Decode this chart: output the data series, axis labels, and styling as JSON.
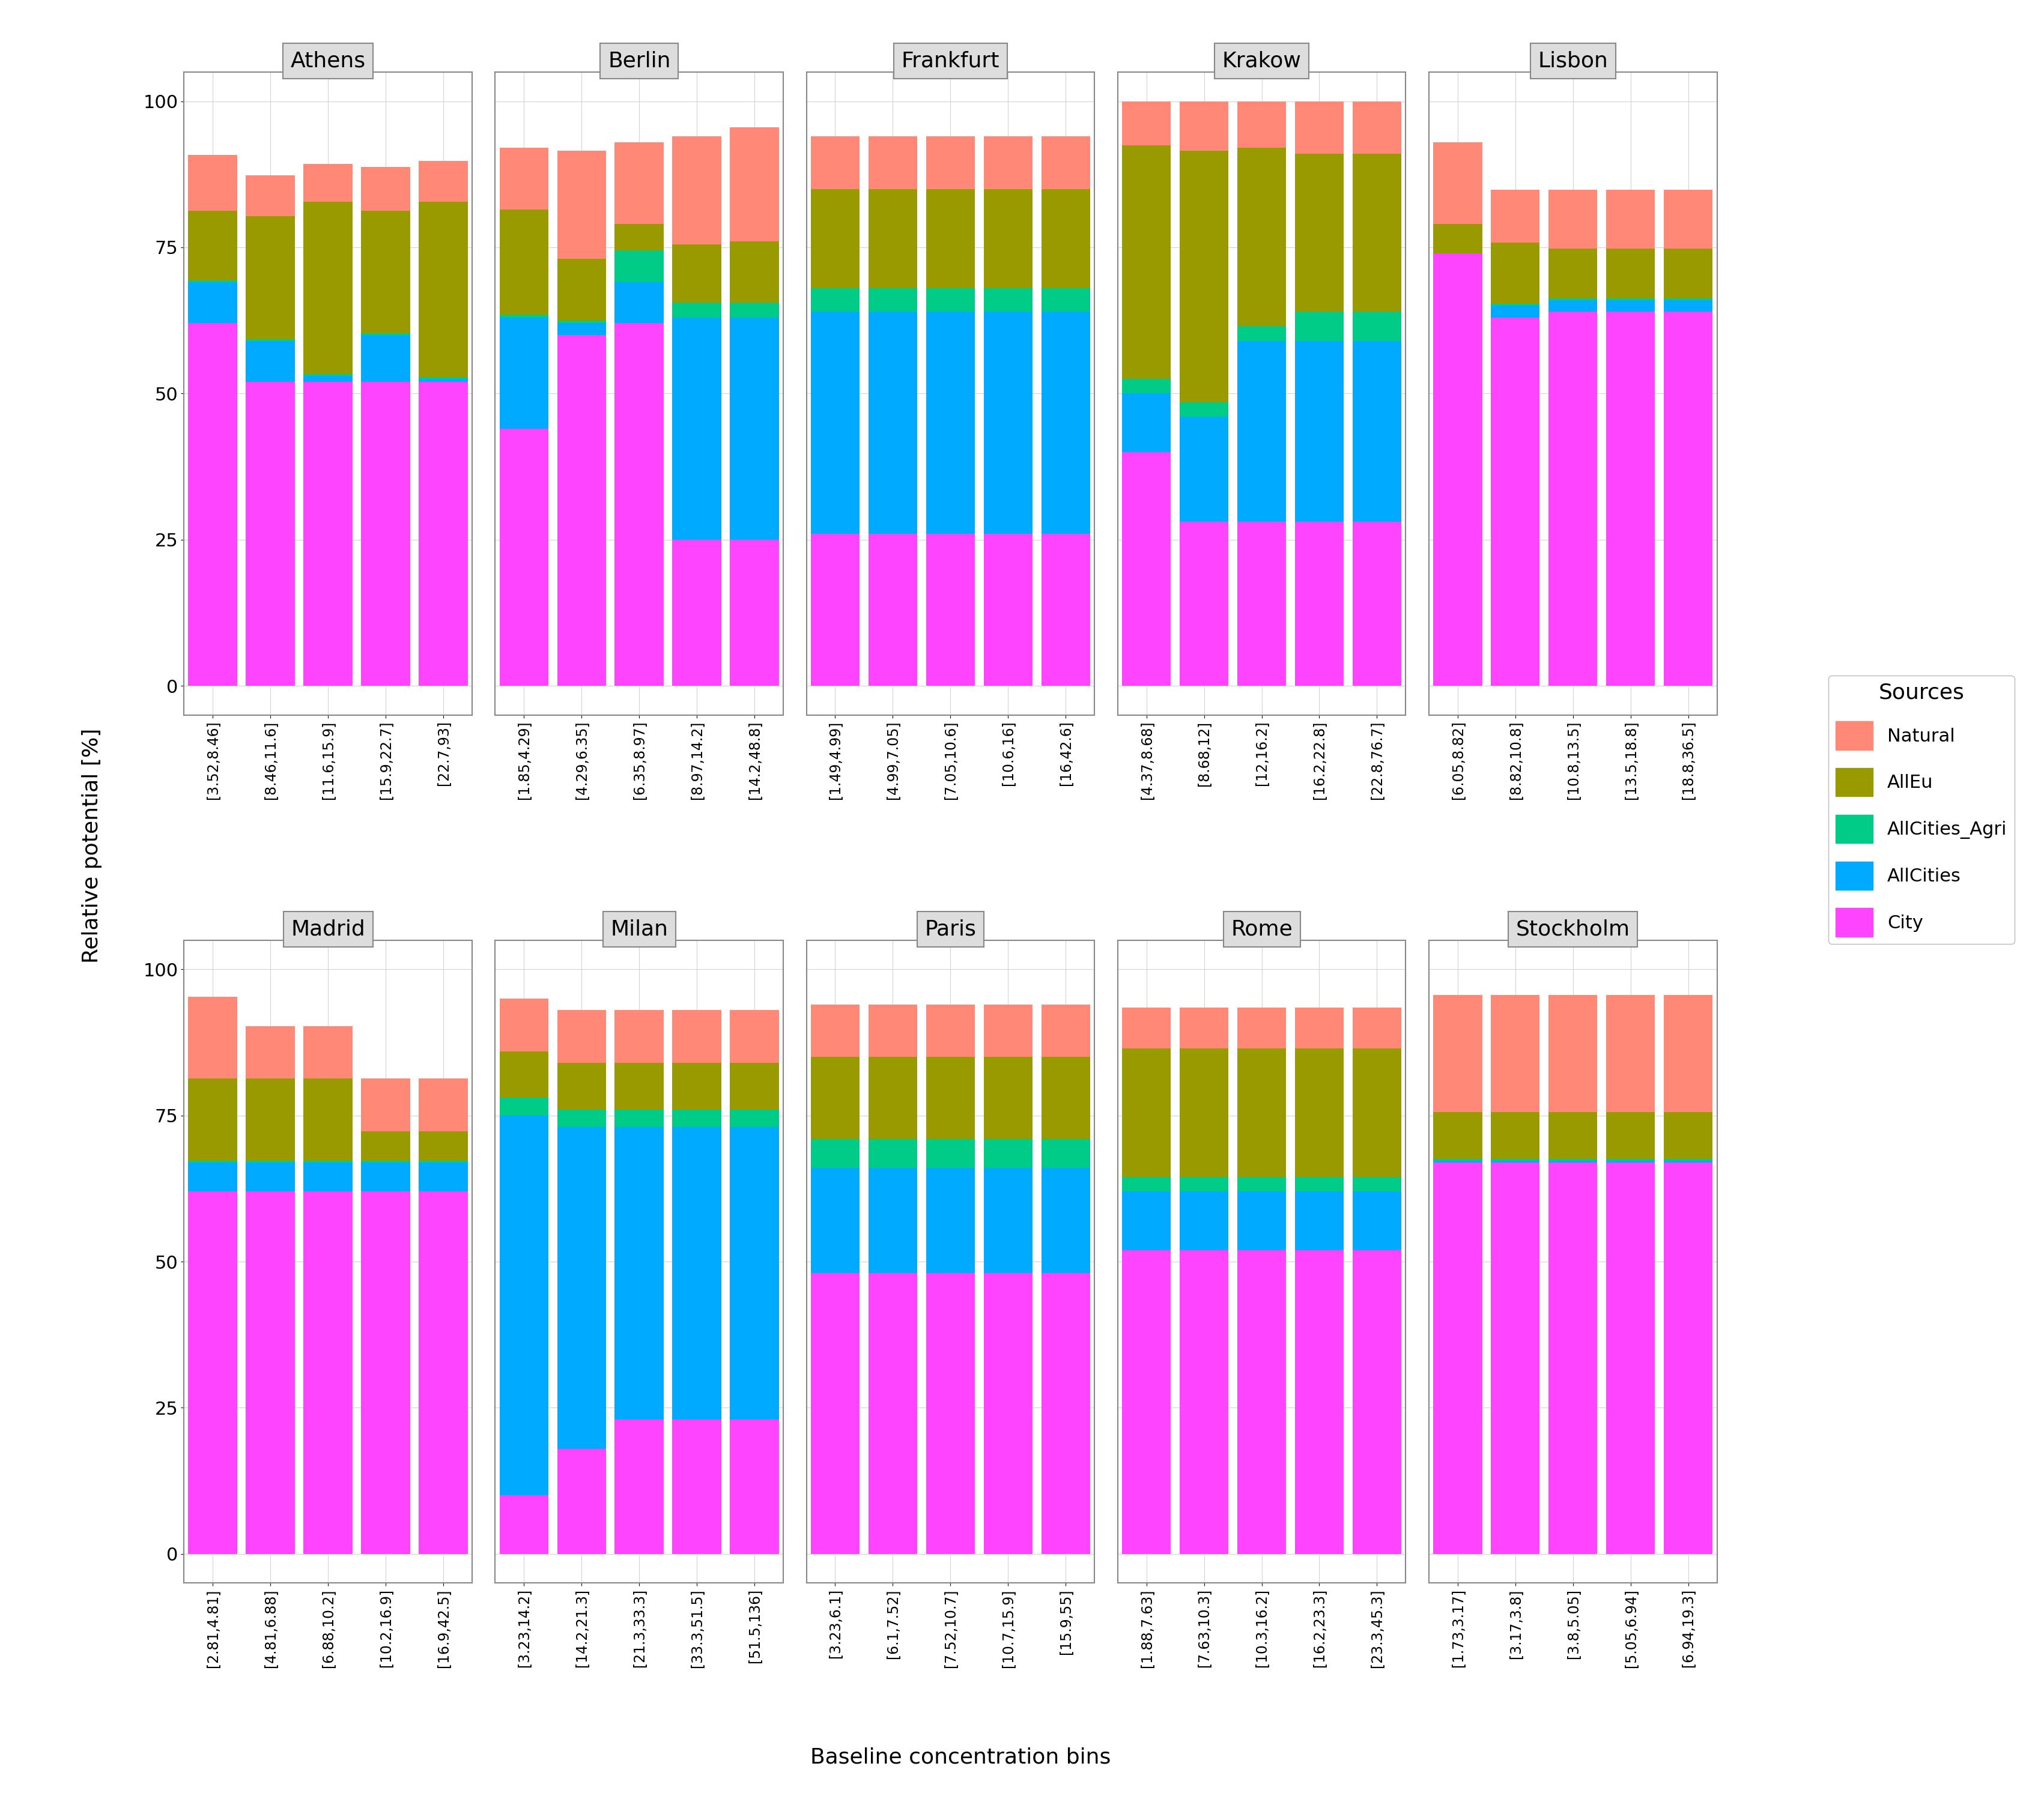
{
  "cities_row1": [
    "Athens",
    "Berlin",
    "Frankfurt",
    "Krakow",
    "Lisbon"
  ],
  "cities_row2": [
    "Madrid",
    "Milan",
    "Paris",
    "Rome",
    "Stockholm"
  ],
  "colors": {
    "City": "#FF44FF",
    "AllCities": "#00AAFF",
    "AllCities_Agri": "#00CC88",
    "AllEu": "#999900",
    "Natural": "#FF8877"
  },
  "legend_order": [
    "Natural",
    "AllEu",
    "AllCities_Agri",
    "AllCities",
    "City"
  ],
  "ylabel": "Relative potential [%]",
  "xlabel": "Baseline concentration bins",
  "data": {
    "Athens": {
      "bins": [
        "[3.52,8.46]",
        "[8.46,11.6]",
        "[11.6,15.9]",
        "[15.9,22.7]",
        "[22.7,93]"
      ],
      "City": [
        62.0,
        52.0,
        52.0,
        52.0,
        52.0
      ],
      "AllCities": [
        7.0,
        7.5,
        1.0,
        8.0,
        0.5
      ],
      "AllCities_Agri": [
        0.5,
        0.5,
        0.5,
        0.5,
        0.5
      ],
      "AllEu": [
        12.0,
        21.0,
        29.0,
        21.0,
        30.0
      ],
      "Natural": [
        9.0,
        7.0,
        6.0,
        7.0,
        6.5
      ]
    },
    "Berlin": {
      "bins": [
        "[1.85,4.29]",
        "[4.29,6.35]",
        "[6.35,8.97]",
        "[8.97,14.2]",
        "[14.2,48.8]"
      ],
      "City": [
        44.0,
        61.0,
        63.0,
        25.5,
        25.5
      ],
      "AllCities": [
        19.0,
        2.0,
        7.5,
        38.0,
        38.0
      ],
      "AllCities_Agri": [
        0.5,
        0.5,
        5.5,
        2.5,
        2.5
      ],
      "AllEu": [
        18.0,
        10.0,
        4.0,
        10.0,
        10.0
      ],
      "Natural": [
        10.5,
        18.5,
        14.0,
        18.0,
        19.0
      ]
    },
    "Frankfurt": {
      "bins": [
        "[1.49,4.99]",
        "[4.99,7.05]",
        "[7.05,10.6]",
        "[10.6,16]",
        "[16,42.6]"
      ],
      "City": [
        26.0,
        26.0,
        26.0,
        26.0,
        26.0
      ],
      "AllCities": [
        38.0,
        38.0,
        38.0,
        38.0,
        38.0
      ],
      "AllCities_Agri": [
        4.0,
        4.0,
        4.0,
        4.0,
        4.0
      ],
      "AllEu": [
        17.0,
        17.0,
        17.0,
        17.0,
        17.0
      ],
      "Natural": [
        9.0,
        9.0,
        9.0,
        9.0,
        9.0
      ]
    },
    "Krakow": {
      "bins": [
        "[4.37,8.68]",
        "[8.68,12]",
        "[12,16.2]",
        "[16.2,22.8]",
        "[22.8,76.7]"
      ],
      "City": [
        40.0,
        28.0,
        28.0,
        28.0,
        28.0
      ],
      "AllCities": [
        10.0,
        18.0,
        31.0,
        31.0,
        31.0
      ],
      "AllCities_Agri": [
        2.5,
        2.5,
        2.5,
        5.0,
        5.0
      ],
      "AllEu": [
        40.0,
        43.0,
        30.5,
        27.0,
        27.0
      ],
      "Natural": [
        7.5,
        8.5,
        8.0,
        9.0,
        9.0
      ]
    },
    "Lisbon": {
      "bins": [
        "[6.05,8.82]",
        "[8.82,10.8]",
        "[10.8,13.5]",
        "[13.5,18.8]",
        "[18.8,36.5]"
      ],
      "City": [
        74.0,
        63.0,
        64.0,
        64.0,
        64.0
      ],
      "AllCities": [
        0.0,
        2.0,
        2.0,
        2.0,
        2.0
      ],
      "AllCities_Agri": [
        0.0,
        0.5,
        0.5,
        0.5,
        0.5
      ],
      "AllEu": [
        5.0,
        10.5,
        8.5,
        8.5,
        8.5
      ],
      "Natural": [
        14.0,
        9.0,
        10.0,
        10.0,
        10.0
      ]
    },
    "Madrid": {
      "bins": [
        "[2.81,4.81]",
        "[4.81,6.88]",
        "[6.88,10.2]",
        "[10.2,16.9]",
        "[16.9,42.5]"
      ],
      "City": [
        62.0,
        62.0,
        62.0,
        62.0,
        62.0
      ],
      "AllCities": [
        5.0,
        5.0,
        5.0,
        5.0,
        5.0
      ],
      "AllCities_Agri": [
        0.5,
        0.5,
        0.5,
        0.5,
        0.5
      ],
      "AllEu": [
        14.0,
        14.0,
        14.0,
        5.0,
        5.0
      ],
      "Natural": [
        14.0,
        9.0,
        9.0,
        9.0,
        9.0
      ]
    },
    "Milan": {
      "bins": [
        "[3.23,14.2]",
        "[14.2,21.3]",
        "[21.3,33.3]",
        "[33.3,51.5]",
        "[51.5,136]"
      ],
      "City": [
        10.0,
        18.0,
        23.0,
        23.0,
        23.0
      ],
      "AllCities": [
        65.0,
        55.0,
        50.0,
        50.0,
        50.0
      ],
      "AllCities_Agri": [
        3.0,
        3.0,
        3.0,
        3.0,
        3.0
      ],
      "AllEu": [
        8.0,
        8.0,
        8.0,
        8.0,
        8.0
      ],
      "Natural": [
        9.0,
        9.0,
        9.0,
        9.0,
        9.0
      ]
    },
    "Paris": {
      "bins": [
        "[3.23,6.1]",
        "[6.1,7.52]",
        "[7.52,10.7]",
        "[10.7,15.9]",
        "[15.9,55]"
      ],
      "City": [
        48.0,
        48.0,
        48.0,
        48.0,
        48.0
      ],
      "AllCities": [
        18.0,
        18.0,
        18.0,
        18.0,
        18.0
      ],
      "AllCities_Agri": [
        5.0,
        5.0,
        5.0,
        5.0,
        5.0
      ],
      "AllEu": [
        14.0,
        14.0,
        14.0,
        14.0,
        14.0
      ],
      "Natural": [
        9.0,
        9.0,
        9.0,
        9.0,
        9.0
      ]
    },
    "Rome": {
      "bins": [
        "[1.88,7.63]",
        "[7.63,10.3]",
        "[10.3,16.2]",
        "[16.2,23.3]",
        "[23.3,45.3]"
      ],
      "City": [
        52.0,
        52.0,
        52.0,
        52.0,
        52.0
      ],
      "AllCities": [
        10.0,
        10.0,
        10.0,
        10.0,
        10.0
      ],
      "AllCities_Agri": [
        2.5,
        2.5,
        2.5,
        2.5,
        2.5
      ],
      "AllEu": [
        22.0,
        22.0,
        22.0,
        22.0,
        22.0
      ],
      "Natural": [
        7.0,
        7.0,
        7.0,
        7.0,
        7.0
      ]
    },
    "Stockholm": {
      "bins": [
        "[1.73,3.17]",
        "[3.17,3.8]",
        "[3.8,5.05]",
        "[5.05,6.94]",
        "[6.94,19.3]"
      ],
      "City": [
        67.0,
        67.0,
        67.0,
        67.0,
        67.0
      ],
      "AllCities": [
        0.5,
        0.5,
        0.5,
        0.5,
        0.5
      ],
      "AllCities_Agri": [
        0.5,
        0.5,
        0.5,
        0.5,
        0.5
      ],
      "AllEu": [
        8.0,
        8.0,
        8.0,
        8.0,
        8.0
      ],
      "Natural": [
        20.0,
        20.0,
        20.0,
        20.0,
        20.0
      ]
    }
  }
}
